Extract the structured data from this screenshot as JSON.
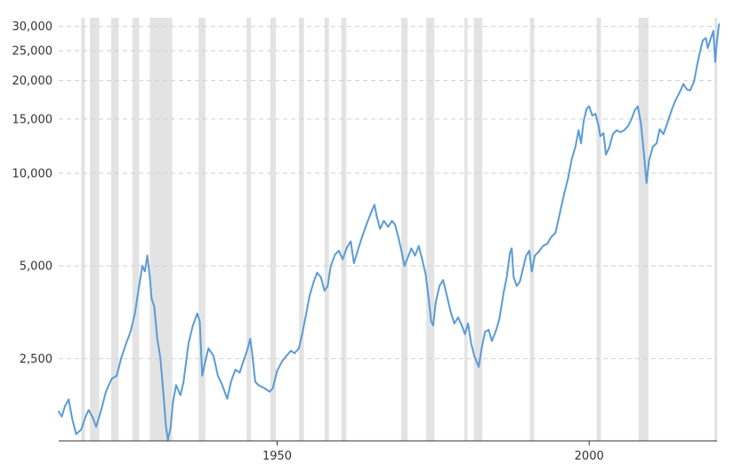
{
  "chart_data": {
    "type": "line",
    "title": "",
    "xlabel": "",
    "ylabel": "",
    "y_scale": "log",
    "ylim": [
      1350,
      32000
    ],
    "xlim": [
      1915,
      2020.5
    ],
    "grid": "horizontal dashed",
    "legend": "none",
    "y_ticks": [
      {
        "value": 2500,
        "label": "2,500"
      },
      {
        "value": 5000,
        "label": "5,000"
      },
      {
        "value": 10000,
        "label": "10,000"
      },
      {
        "value": 15000,
        "label": "15,000"
      },
      {
        "value": 20000,
        "label": "20,000"
      },
      {
        "value": 25000,
        "label": "25,000"
      },
      {
        "value": 30000,
        "label": "30,000"
      }
    ],
    "x_ticks": [
      {
        "value": 1950,
        "label": "1950"
      },
      {
        "value": 2000,
        "label": "2000"
      }
    ],
    "recession_bands": [
      [
        1918.6,
        1919.2
      ],
      [
        1920.0,
        1921.5
      ],
      [
        1923.4,
        1924.6
      ],
      [
        1926.8,
        1927.9
      ],
      [
        1929.6,
        1933.2
      ],
      [
        1937.4,
        1938.5
      ],
      [
        1945.1,
        1945.8
      ],
      [
        1948.9,
        1949.8
      ],
      [
        1953.5,
        1954.3
      ],
      [
        1957.6,
        1958.3
      ],
      [
        1960.3,
        1961.1
      ],
      [
        1969.9,
        1970.9
      ],
      [
        1973.9,
        1975.2
      ],
      [
        1980.0,
        1980.5
      ],
      [
        1981.5,
        1982.9
      ],
      [
        1990.5,
        1991.2
      ],
      [
        2001.2,
        2001.9
      ],
      [
        2007.9,
        2009.5
      ],
      [
        2020.1,
        2020.5
      ]
    ],
    "colors": {
      "line": "#5b9bd5",
      "band": "#e3e3e3",
      "grid": "#cfcfcf",
      "axis": "#333333"
    },
    "series": [
      {
        "color": "#5b9bd5",
        "points": [
          [
            1915.0,
            1680
          ],
          [
            1915.5,
            1620
          ],
          [
            1916.0,
            1750
          ],
          [
            1916.6,
            1840
          ],
          [
            1917.2,
            1580
          ],
          [
            1917.8,
            1420
          ],
          [
            1918.6,
            1470
          ],
          [
            1919.3,
            1620
          ],
          [
            1919.8,
            1700
          ],
          [
            1920.5,
            1600
          ],
          [
            1921.0,
            1500
          ],
          [
            1921.8,
            1700
          ],
          [
            1922.6,
            1960
          ],
          [
            1923.5,
            2150
          ],
          [
            1924.3,
            2200
          ],
          [
            1925.0,
            2500
          ],
          [
            1925.8,
            2800
          ],
          [
            1926.5,
            3050
          ],
          [
            1927.2,
            3500
          ],
          [
            1927.8,
            4200
          ],
          [
            1928.4,
            5000
          ],
          [
            1928.8,
            4800
          ],
          [
            1929.2,
            5400
          ],
          [
            1929.6,
            4600
          ],
          [
            1929.9,
            3900
          ],
          [
            1930.3,
            3700
          ],
          [
            1930.8,
            2900
          ],
          [
            1931.3,
            2500
          ],
          [
            1931.8,
            1900
          ],
          [
            1932.2,
            1500
          ],
          [
            1932.5,
            1360
          ],
          [
            1932.9,
            1480
          ],
          [
            1933.3,
            1800
          ],
          [
            1933.8,
            2050
          ],
          [
            1934.5,
            1900
          ],
          [
            1935.0,
            2100
          ],
          [
            1935.8,
            2800
          ],
          [
            1936.5,
            3200
          ],
          [
            1937.2,
            3500
          ],
          [
            1937.6,
            3300
          ],
          [
            1938.0,
            2200
          ],
          [
            1938.4,
            2400
          ],
          [
            1939.0,
            2700
          ],
          [
            1939.8,
            2550
          ],
          [
            1940.5,
            2200
          ],
          [
            1941.2,
            2050
          ],
          [
            1942.0,
            1850
          ],
          [
            1942.6,
            2100
          ],
          [
            1943.3,
            2300
          ],
          [
            1944.0,
            2250
          ],
          [
            1944.6,
            2450
          ],
          [
            1945.3,
            2700
          ],
          [
            1945.7,
            2900
          ],
          [
            1946.1,
            2500
          ],
          [
            1946.5,
            2100
          ],
          [
            1947.0,
            2050
          ],
          [
            1948.0,
            2000
          ],
          [
            1948.8,
            1950
          ],
          [
            1949.3,
            2000
          ],
          [
            1950.0,
            2280
          ],
          [
            1950.8,
            2450
          ],
          [
            1951.5,
            2550
          ],
          [
            1952.2,
            2650
          ],
          [
            1952.8,
            2600
          ],
          [
            1953.5,
            2700
          ],
          [
            1954.0,
            3000
          ],
          [
            1954.6,
            3450
          ],
          [
            1955.2,
            4000
          ],
          [
            1955.8,
            4400
          ],
          [
            1956.4,
            4750
          ],
          [
            1957.0,
            4600
          ],
          [
            1957.6,
            4150
          ],
          [
            1958.1,
            4300
          ],
          [
            1958.6,
            5000
          ],
          [
            1959.3,
            5450
          ],
          [
            1959.9,
            5600
          ],
          [
            1960.5,
            5250
          ],
          [
            1961.2,
            5750
          ],
          [
            1961.8,
            6000
          ],
          [
            1962.3,
            5100
          ],
          [
            1962.9,
            5600
          ],
          [
            1963.6,
            6200
          ],
          [
            1964.3,
            6800
          ],
          [
            1965.0,
            7400
          ],
          [
            1965.6,
            7900
          ],
          [
            1966.0,
            7200
          ],
          [
            1966.5,
            6600
          ],
          [
            1967.1,
            7000
          ],
          [
            1967.8,
            6700
          ],
          [
            1968.4,
            7000
          ],
          [
            1968.9,
            6800
          ],
          [
            1969.5,
            6100
          ],
          [
            1970.0,
            5500
          ],
          [
            1970.4,
            5000
          ],
          [
            1970.9,
            5300
          ],
          [
            1971.5,
            5700
          ],
          [
            1972.1,
            5400
          ],
          [
            1972.7,
            5800
          ],
          [
            1973.2,
            5300
          ],
          [
            1973.8,
            4700
          ],
          [
            1974.3,
            3900
          ],
          [
            1974.7,
            3300
          ],
          [
            1975.0,
            3200
          ],
          [
            1975.4,
            3800
          ],
          [
            1976.0,
            4300
          ],
          [
            1976.6,
            4500
          ],
          [
            1977.2,
            4000
          ],
          [
            1977.8,
            3550
          ],
          [
            1978.4,
            3250
          ],
          [
            1979.0,
            3400
          ],
          [
            1979.6,
            3200
          ],
          [
            1980.1,
            3000
          ],
          [
            1980.6,
            3250
          ],
          [
            1981.1,
            2800
          ],
          [
            1981.6,
            2550
          ],
          [
            1982.3,
            2350
          ],
          [
            1982.7,
            2650
          ],
          [
            1983.3,
            3050
          ],
          [
            1983.9,
            3100
          ],
          [
            1984.4,
            2850
          ],
          [
            1985.0,
            3050
          ],
          [
            1985.6,
            3350
          ],
          [
            1986.3,
            4100
          ],
          [
            1986.8,
            4600
          ],
          [
            1987.3,
            5500
          ],
          [
            1987.6,
            5700
          ],
          [
            1987.9,
            4600
          ],
          [
            1988.4,
            4300
          ],
          [
            1988.9,
            4450
          ],
          [
            1989.5,
            5000
          ],
          [
            1989.9,
            5400
          ],
          [
            1990.4,
            5600
          ],
          [
            1990.8,
            4800
          ],
          [
            1991.3,
            5400
          ],
          [
            1991.9,
            5550
          ],
          [
            1992.6,
            5800
          ],
          [
            1993.3,
            5900
          ],
          [
            1993.9,
            6200
          ],
          [
            1994.6,
            6400
          ],
          [
            1995.3,
            7400
          ],
          [
            1996.0,
            8600
          ],
          [
            1996.6,
            9600
          ],
          [
            1997.2,
            11100
          ],
          [
            1997.8,
            12200
          ],
          [
            1998.3,
            13800
          ],
          [
            1998.7,
            12500
          ],
          [
            1999.1,
            14700
          ],
          [
            1999.6,
            16200
          ],
          [
            2000.0,
            16500
          ],
          [
            2000.5,
            15400
          ],
          [
            2001.0,
            15600
          ],
          [
            2001.5,
            14300
          ],
          [
            2001.8,
            13200
          ],
          [
            2002.3,
            13500
          ],
          [
            2002.7,
            11500
          ],
          [
            2003.2,
            12100
          ],
          [
            2003.8,
            13400
          ],
          [
            2004.4,
            13800
          ],
          [
            2005.0,
            13600
          ],
          [
            2005.6,
            13800
          ],
          [
            2006.2,
            14200
          ],
          [
            2006.8,
            15000
          ],
          [
            2007.3,
            16000
          ],
          [
            2007.8,
            16500
          ],
          [
            2008.3,
            14500
          ],
          [
            2008.8,
            11500
          ],
          [
            2009.2,
            9300
          ],
          [
            2009.6,
            11000
          ],
          [
            2010.2,
            12200
          ],
          [
            2010.8,
            12500
          ],
          [
            2011.3,
            13900
          ],
          [
            2011.9,
            13400
          ],
          [
            2012.5,
            14500
          ],
          [
            2013.2,
            16000
          ],
          [
            2013.8,
            17200
          ],
          [
            2014.5,
            18300
          ],
          [
            2015.1,
            19500
          ],
          [
            2015.7,
            18700
          ],
          [
            2016.2,
            18600
          ],
          [
            2016.8,
            19800
          ],
          [
            2017.3,
            22500
          ],
          [
            2017.8,
            25000
          ],
          [
            2018.2,
            27000
          ],
          [
            2018.7,
            27500
          ],
          [
            2019.0,
            25500
          ],
          [
            2019.5,
            27500
          ],
          [
            2019.9,
            29000
          ],
          [
            2020.2,
            23000
          ],
          [
            2020.5,
            27000
          ],
          [
            2020.8,
            30500
          ]
        ]
      }
    ]
  }
}
